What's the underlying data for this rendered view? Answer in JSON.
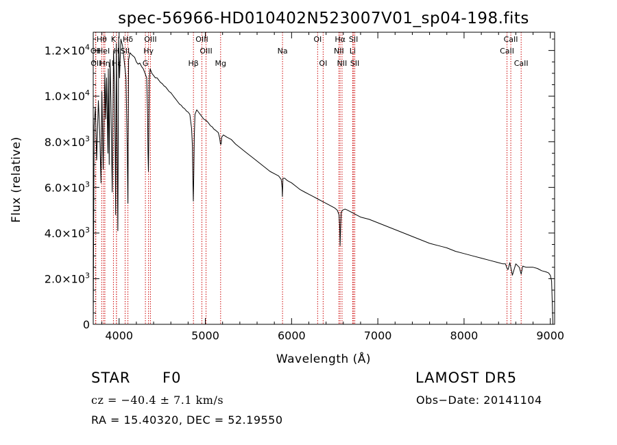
{
  "chart_data": {
    "type": "line",
    "title": "spec-56966-HD010402N523007V01_sp04-198.fits",
    "xlabel": "Wavelength (Å)",
    "ylabel": "Flux (relative)",
    "xlim": [
      3700,
      9050
    ],
    "ylim": [
      0,
      12800
    ],
    "xticks": [
      4000,
      5000,
      6000,
      7000,
      8000,
      9000
    ],
    "yticks": [
      {
        "value": 0,
        "mant": "0",
        "exp": ""
      },
      {
        "value": 2000,
        "mant": "2.0×10",
        "exp": "3"
      },
      {
        "value": 4000,
        "mant": "4.0×10",
        "exp": "3"
      },
      {
        "value": 6000,
        "mant": "6.0×10",
        "exp": "3"
      },
      {
        "value": 8000,
        "mant": "8.0×10",
        "exp": "3"
      },
      {
        "value": 10000,
        "mant": "1.0×10",
        "exp": "4"
      },
      {
        "value": 12000,
        "mant": "1.2×10",
        "exp": "4"
      }
    ],
    "grid": false,
    "line_color": "#000000",
    "marker_color": "#cc0000",
    "series": [
      {
        "x": [
          3700,
          3710,
          3725,
          3740,
          3760,
          3775,
          3790,
          3800,
          3815,
          3835,
          3845,
          3855,
          3870,
          3875,
          3885,
          3895,
          3905,
          3920,
          3935,
          3945,
          3955,
          3960,
          3968,
          3975,
          3985,
          3995,
          4005,
          4020,
          4040,
          4060,
          4080,
          4095,
          4102,
          4110,
          4125,
          4150,
          4180,
          4200,
          4220,
          4240,
          4260,
          4280,
          4300,
          4320,
          4330,
          4335,
          4340,
          4345,
          4350,
          4360,
          4380,
          4400,
          4420,
          4440,
          4460,
          4480,
          4500,
          4520,
          4540,
          4560,
          4580,
          4600,
          4620,
          4640,
          4660,
          4680,
          4700,
          4720,
          4740,
          4760,
          4780,
          4800,
          4820,
          4840,
          4850,
          4855,
          4861,
          4866,
          4872,
          4880,
          4890,
          4900,
          4920,
          4940,
          4960,
          4980,
          5000,
          5020,
          5040,
          5060,
          5080,
          5100,
          5120,
          5150,
          5167,
          5175,
          5183,
          5190,
          5210,
          5250,
          5300,
          5350,
          5400,
          5450,
          5500,
          5550,
          5600,
          5650,
          5700,
          5750,
          5800,
          5850,
          5880,
          5890,
          5893,
          5896,
          5900,
          5920,
          5950,
          6000,
          6050,
          6100,
          6150,
          6200,
          6250,
          6300,
          6350,
          6400,
          6450,
          6500,
          6530,
          6550,
          6558,
          6563,
          6568,
          6575,
          6590,
          6620,
          6650,
          6700,
          6750,
          6800,
          6900,
          7000,
          7100,
          7200,
          7300,
          7400,
          7500,
          7600,
          7700,
          7750,
          7800,
          7900,
          8000,
          8100,
          8200,
          8300,
          8400,
          8450,
          8480,
          8498,
          8510,
          8530,
          8542,
          8560,
          8600,
          8640,
          8662,
          8680,
          8720,
          8760,
          8800,
          8850,
          8900,
          8950,
          8980,
          9000,
          9015,
          9030
        ],
        "y": [
          0,
          8700,
          9500,
          7200,
          9800,
          8500,
          6200,
          10200,
          6800,
          11000,
          9000,
          10800,
          7500,
          11200,
          7000,
          11600,
          9800,
          5800,
          12000,
          10500,
          7400,
          4800,
          12300,
          9200,
          4100,
          12600,
          10800,
          12500,
          12200,
          11500,
          10800,
          7500,
          5300,
          11600,
          11900,
          11800,
          11700,
          11500,
          11400,
          11450,
          11300,
          11200,
          11000,
          10800,
          9200,
          7500,
          6700,
          8200,
          10700,
          11200,
          11000,
          10900,
          10800,
          10800,
          10700,
          10600,
          10550,
          10450,
          10400,
          10300,
          10200,
          10150,
          10050,
          9950,
          9850,
          9750,
          9650,
          9600,
          9500,
          9450,
          9350,
          9300,
          9200,
          8600,
          7800,
          6400,
          5400,
          6600,
          8200,
          9200,
          9300,
          9400,
          9300,
          9200,
          9100,
          9000,
          8950,
          8900,
          8800,
          8700,
          8650,
          8550,
          8500,
          8400,
          8150,
          7900,
          7900,
          8200,
          8300,
          8200,
          8100,
          7900,
          7750,
          7600,
          7450,
          7300,
          7150,
          7000,
          6850,
          6700,
          6600,
          6500,
          6350,
          6000,
          5600,
          5900,
          6400,
          6400,
          6300,
          6200,
          6050,
          5900,
          5800,
          5700,
          5600,
          5500,
          5400,
          5300,
          5200,
          5100,
          5000,
          4800,
          4300,
          3450,
          4200,
          4900,
          5000,
          5050,
          5000,
          4900,
          4800,
          4700,
          4600,
          4450,
          4300,
          4150,
          4000,
          3850,
          3700,
          3550,
          3450,
          3400,
          3350,
          3200,
          3100,
          3000,
          2900,
          2800,
          2700,
          2650,
          2650,
          2450,
          2400,
          2700,
          2500,
          2150,
          2650,
          2500,
          2200,
          2550,
          2500,
          2500,
          2500,
          2450,
          2350,
          2300,
          2250,
          2150,
          1900,
          0
        ]
      }
    ],
    "lines": [
      {
        "name": "Hδ",
        "x": 4102,
        "row": 0
      },
      {
        "name": "OII",
        "x": 3727,
        "row": 1
      },
      {
        "name": "OII",
        "x": 3730,
        "row": 2
      },
      {
        "name": "Hθ",
        "x": 3798,
        "row": 0
      },
      {
        "name": "HeI",
        "x": 3820,
        "row": 1
      },
      {
        "name": "Hη",
        "x": 3835,
        "row": 2
      },
      {
        "name": "K",
        "x": 3934,
        "row": 0
      },
      {
        "name": "H",
        "x": 3969,
        "row": 1
      },
      {
        "name": "Hε",
        "x": 3970,
        "row": 2
      },
      {
        "name": "SII",
        "x": 4070,
        "row": 1
      },
      {
        "name": "OIII",
        "x": 4363,
        "row": 0
      },
      {
        "name": "Hγ",
        "x": 4341,
        "row": 1
      },
      {
        "name": "G",
        "x": 4305,
        "row": 2
      },
      {
        "name": "OIII",
        "x": 4960,
        "row": 0
      },
      {
        "name": "OIII",
        "x": 5008,
        "row": 1
      },
      {
        "name": "Hβ",
        "x": 4862,
        "row": 2
      },
      {
        "name": "Mg",
        "x": 5177,
        "row": 2
      },
      {
        "name": "Na",
        "x": 5895,
        "row": 1
      },
      {
        "name": "OI",
        "x": 6302,
        "row": 0
      },
      {
        "name": "OI",
        "x": 6366,
        "row": 2
      },
      {
        "name": "Hα",
        "x": 6563,
        "row": 0
      },
      {
        "name": "NII",
        "x": 6549,
        "row": 1
      },
      {
        "name": "NII",
        "x": 6585,
        "row": 2
      },
      {
        "name": "SII",
        "x": 6718,
        "row": 0
      },
      {
        "name": "Li",
        "x": 6708,
        "row": 1
      },
      {
        "name": "SII",
        "x": 6733,
        "row": 2
      },
      {
        "name": "CaII",
        "x": 8542,
        "row": 0
      },
      {
        "name": "CaII",
        "x": 8498,
        "row": 1
      },
      {
        "name": "CaII",
        "x": 8662,
        "row": 2
      }
    ]
  },
  "info": {
    "class_label": "STAR",
    "subclass": "F0",
    "survey": "LAMOST DR5",
    "cz": "cz = −40.4 ± 7.1 km/s",
    "obs_date": "Obs−Date: 20141104",
    "coords": "RA =  15.40320, DEC =  52.19550"
  }
}
